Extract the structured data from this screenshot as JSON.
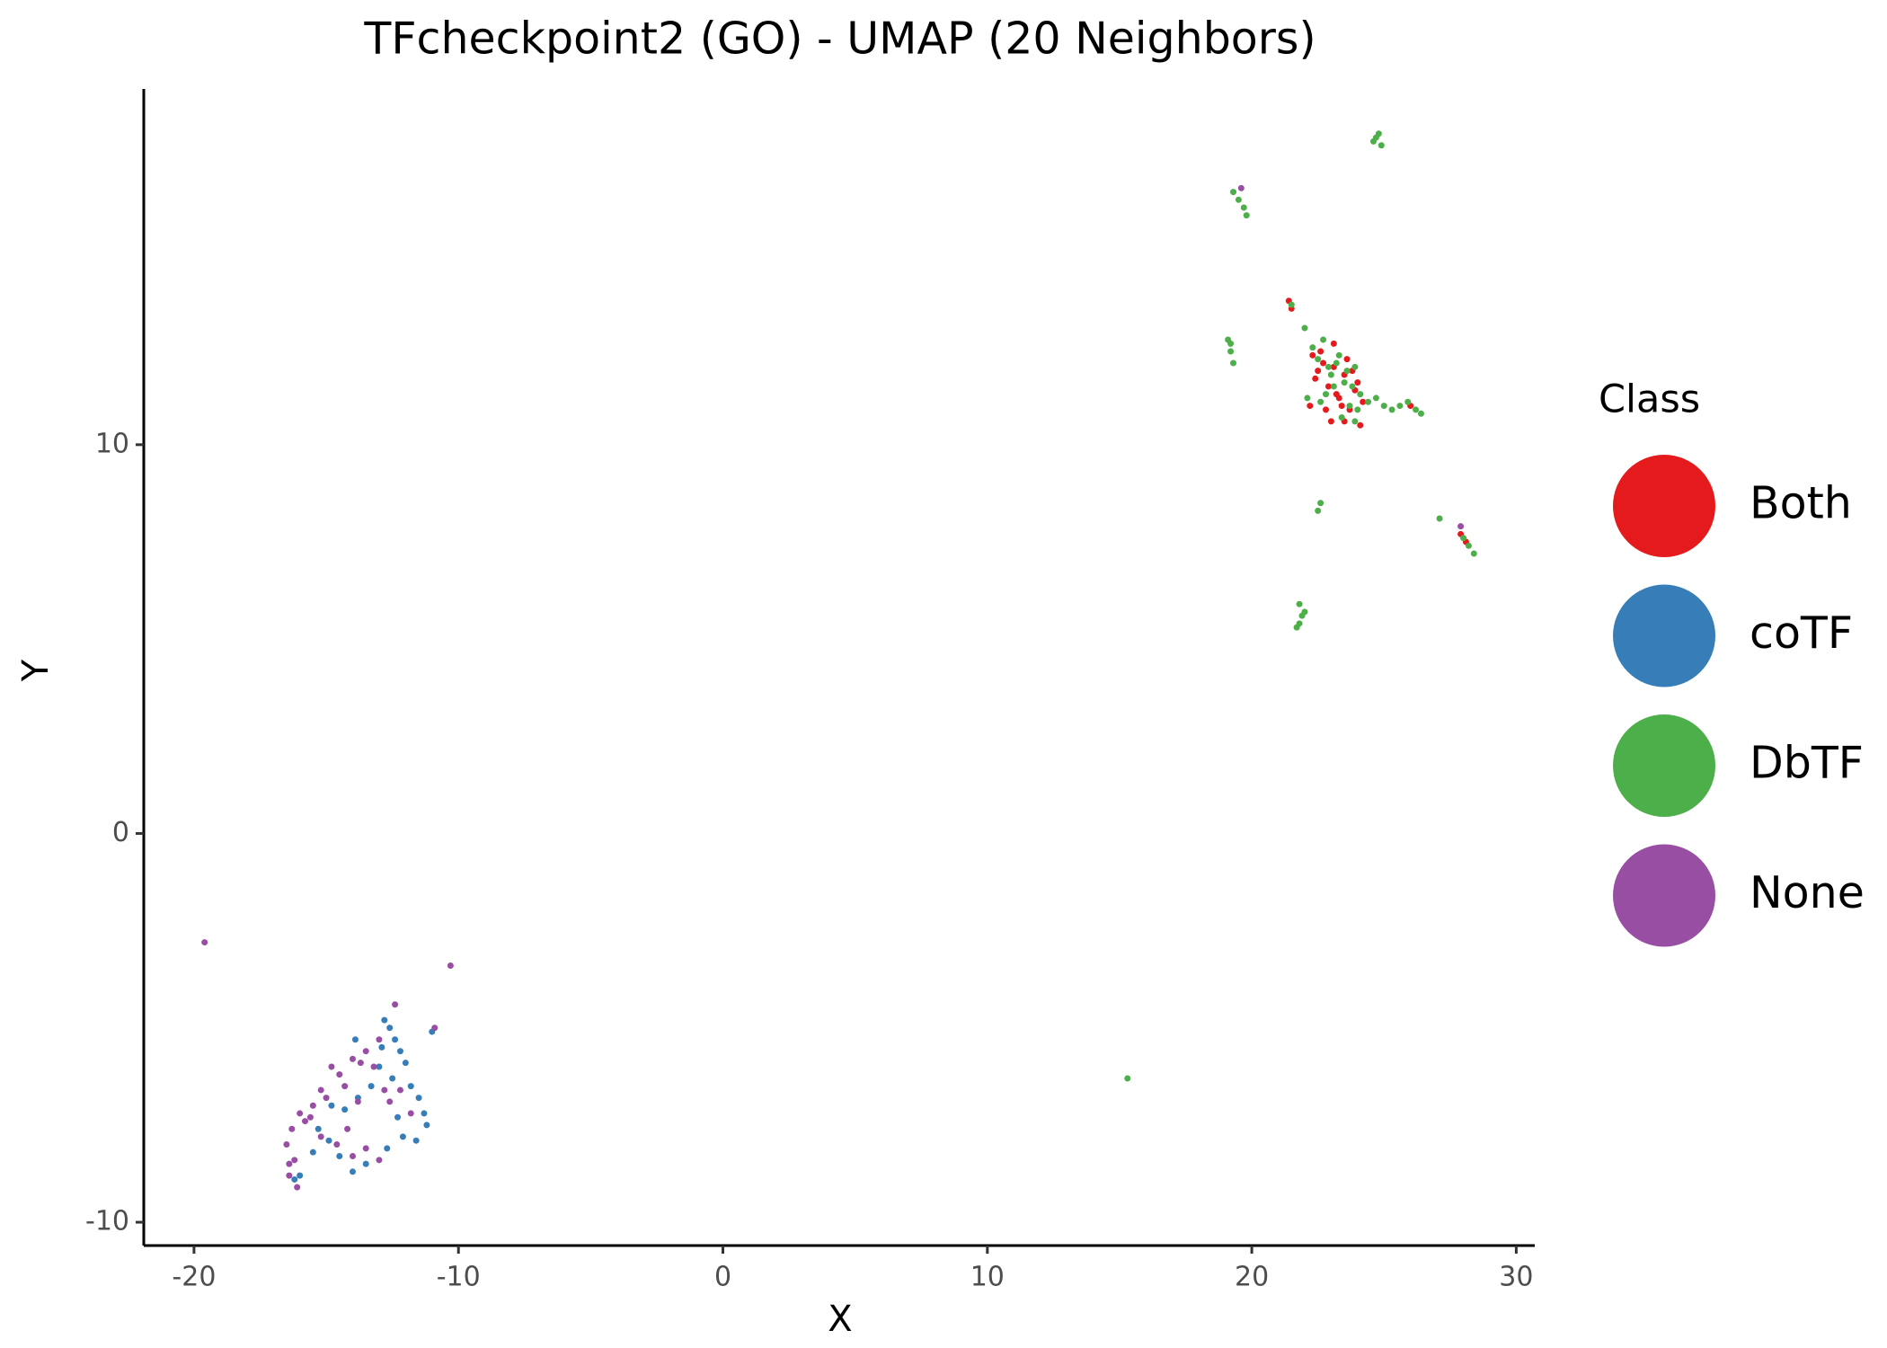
{
  "chart_data": {
    "type": "scatter",
    "title": "TFcheckpoint2 (GO) - UMAP (20 Neighbors)",
    "x_label": "X",
    "y_label": "Y",
    "legend_title": "Class",
    "xlim": [
      -21.9,
      30.7
    ],
    "ylim": [
      -10.6,
      19.15
    ],
    "xticks": [
      -20,
      -10,
      0,
      10,
      20,
      30
    ],
    "yticks": [
      -10,
      0,
      10
    ],
    "grid": false,
    "legend_position": "right",
    "series": [
      {
        "name": "Both",
        "color": "#e41a1c",
        "x": [
          21.4,
          21.5,
          22.3,
          22.5,
          22.7,
          22.9,
          23.1,
          23.3,
          23.5,
          23.7,
          23.9,
          24.1,
          22.4,
          22.8,
          23.2,
          23.6,
          24.0,
          22.6,
          23.0,
          23.4,
          23.8,
          24.2,
          26.0,
          27.9,
          28.1,
          23.1,
          22.2,
          23.5
        ],
        "y": [
          13.7,
          13.5,
          12.3,
          11.9,
          12.1,
          11.5,
          12.0,
          11.2,
          11.8,
          10.9,
          11.4,
          10.5,
          11.7,
          10.9,
          11.3,
          12.2,
          11.6,
          12.4,
          10.6,
          11.0,
          11.9,
          11.1,
          11.0,
          7.7,
          7.5,
          12.6,
          11.0,
          10.6
        ]
      },
      {
        "name": "coTF",
        "color": "#377eb8",
        "x": [
          -12.8,
          -12.6,
          -12.4,
          -12.2,
          -12.0,
          -12.9,
          -12.5,
          -13.3,
          -13.8,
          -14.3,
          -14.8,
          -15.3,
          -11.8,
          -11.5,
          -11.3,
          -11.2,
          -11.6,
          -12.1,
          -12.7,
          -13.5,
          -14.0,
          -14.5,
          -14.9,
          -15.5,
          -16.0,
          -16.2,
          -13.0,
          -11.0,
          -12.3,
          -13.9
        ],
        "y": [
          -4.8,
          -5.0,
          -5.3,
          -5.6,
          -5.9,
          -5.5,
          -6.3,
          -6.5,
          -6.8,
          -7.1,
          -7.0,
          -7.6,
          -6.5,
          -6.8,
          -7.2,
          -7.5,
          -7.9,
          -7.8,
          -8.1,
          -8.5,
          -8.7,
          -8.3,
          -7.9,
          -8.2,
          -8.8,
          -8.9,
          -6.0,
          -5.1,
          -7.3,
          -5.3
        ]
      },
      {
        "name": "DbTF",
        "color": "#4daf4a",
        "x": [
          19.3,
          19.5,
          19.7,
          19.8,
          24.6,
          24.7,
          24.8,
          24.9,
          19.1,
          19.2,
          19.3,
          19.2,
          21.5,
          22.0,
          22.3,
          22.5,
          22.7,
          22.9,
          23.1,
          23.3,
          23.5,
          23.7,
          23.9,
          24.1,
          24.4,
          24.7,
          25.0,
          25.3,
          25.6,
          25.9,
          26.2,
          26.4,
          22.6,
          23.0,
          23.4,
          23.8,
          22.8,
          23.2,
          23.6,
          24.0,
          22.1,
          23.9,
          21.8,
          21.9,
          21.7,
          22.0,
          21.8,
          22.5,
          22.6,
          27.1,
          28.0,
          28.2,
          28.4,
          15.3
        ],
        "y": [
          16.5,
          16.3,
          16.1,
          15.9,
          17.8,
          17.9,
          18.0,
          17.7,
          12.7,
          12.4,
          12.1,
          12.6,
          13.6,
          13.0,
          12.5,
          12.2,
          12.7,
          12.0,
          11.5,
          12.3,
          11.6,
          11.0,
          10.6,
          11.3,
          11.1,
          11.2,
          11.0,
          10.9,
          11.0,
          11.1,
          10.9,
          10.8,
          11.1,
          11.8,
          10.7,
          11.5,
          11.3,
          12.1,
          11.9,
          10.9,
          11.2,
          12.0,
          5.9,
          5.6,
          5.3,
          5.7,
          5.4,
          8.3,
          8.5,
          8.1,
          7.6,
          7.4,
          7.2,
          -6.3
        ]
      },
      {
        "name": "None",
        "color": "#984ea3",
        "x": [
          -19.6,
          -10.3,
          -12.4,
          -13.0,
          -13.5,
          -14.0,
          -14.5,
          -13.2,
          -12.8,
          -13.8,
          -14.3,
          -15.0,
          -15.5,
          -16.0,
          -16.3,
          -16.5,
          -16.2,
          -16.4,
          -15.8,
          -15.2,
          -14.6,
          -14.0,
          -13.5,
          -13.0,
          -14.2,
          -13.7,
          -12.6,
          -15.6,
          -16.1,
          -14.8,
          -11.8,
          -12.2,
          -10.9,
          -15.2,
          -16.4,
          19.6,
          27.9
        ],
        "y": [
          -2.8,
          -3.4,
          -4.4,
          -5.3,
          -5.6,
          -5.8,
          -6.2,
          -6.0,
          -6.6,
          -6.9,
          -6.5,
          -6.8,
          -7.0,
          -7.2,
          -7.6,
          -8.0,
          -8.4,
          -8.8,
          -7.4,
          -7.8,
          -8.0,
          -8.3,
          -8.1,
          -8.4,
          -7.6,
          -5.9,
          -6.9,
          -7.3,
          -9.1,
          -6.0,
          -7.2,
          -6.6,
          -5.0,
          -6.6,
          -8.5,
          16.6,
          7.9
        ]
      }
    ]
  }
}
